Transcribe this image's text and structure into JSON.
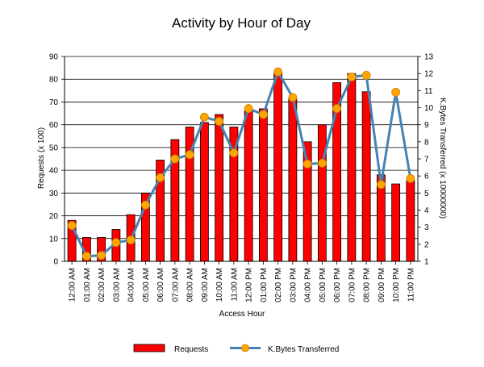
{
  "chart_data": {
    "type": "bar+line",
    "title": "Activity by Hour of Day",
    "xlabel": "Access Hour",
    "ylabel": "Requests (x 100)",
    "y2label": "K.Bytes Transferred (x 10000000)",
    "ylim": [
      0,
      90
    ],
    "y2lim": [
      1,
      13
    ],
    "yticks": [
      "0",
      "10",
      "20",
      "30",
      "40",
      "50",
      "60",
      "70",
      "80",
      "90"
    ],
    "y2ticks": [
      "1",
      "2",
      "3",
      "4",
      "5",
      "6",
      "7",
      "8",
      "9",
      "10",
      "11",
      "12",
      "13"
    ],
    "grid": true,
    "legend_position": "bottom-center",
    "categories": [
      "12:00 AM",
      "01:00 AM",
      "02:00 AM",
      "03:00 AM",
      "04:00 AM",
      "05:00 AM",
      "06:00 AM",
      "07:00 AM",
      "08:00 AM",
      "09:00 AM",
      "10:00 AM",
      "11:00 AM",
      "12:00 PM",
      "01:00 PM",
      "02:00 PM",
      "03:00 PM",
      "04:00 PM",
      "05:00 PM",
      "06:00 PM",
      "07:00 PM",
      "08:00 PM",
      "09:00 PM",
      "10:00 PM",
      "11:00 PM"
    ],
    "series": [
      {
        "name": "Requests",
        "kind": "bar",
        "axis": "left",
        "color": "#ff0000",
        "values": [
          18,
          10.5,
          10.5,
          14,
          20.5,
          30,
          44.5,
          53.5,
          59,
          61,
          64.5,
          59,
          66,
          67,
          83,
          71.5,
          52.5,
          60,
          78.5,
          82.5,
          74.5,
          38,
          34,
          35.5
        ]
      },
      {
        "name": "K.Bytes Transferred",
        "kind": "line",
        "axis": "right",
        "line_color": "#4682b4",
        "marker_color": "#ffa500",
        "values": [
          3.1,
          1.3,
          1.35,
          2.1,
          2.25,
          4.3,
          5.9,
          7,
          7.25,
          9.45,
          9.2,
          7.35,
          9.95,
          9.6,
          12.1,
          10.6,
          6.7,
          6.75,
          9.95,
          11.8,
          11.9,
          5.5,
          10.9,
          5.85
        ]
      }
    ]
  }
}
